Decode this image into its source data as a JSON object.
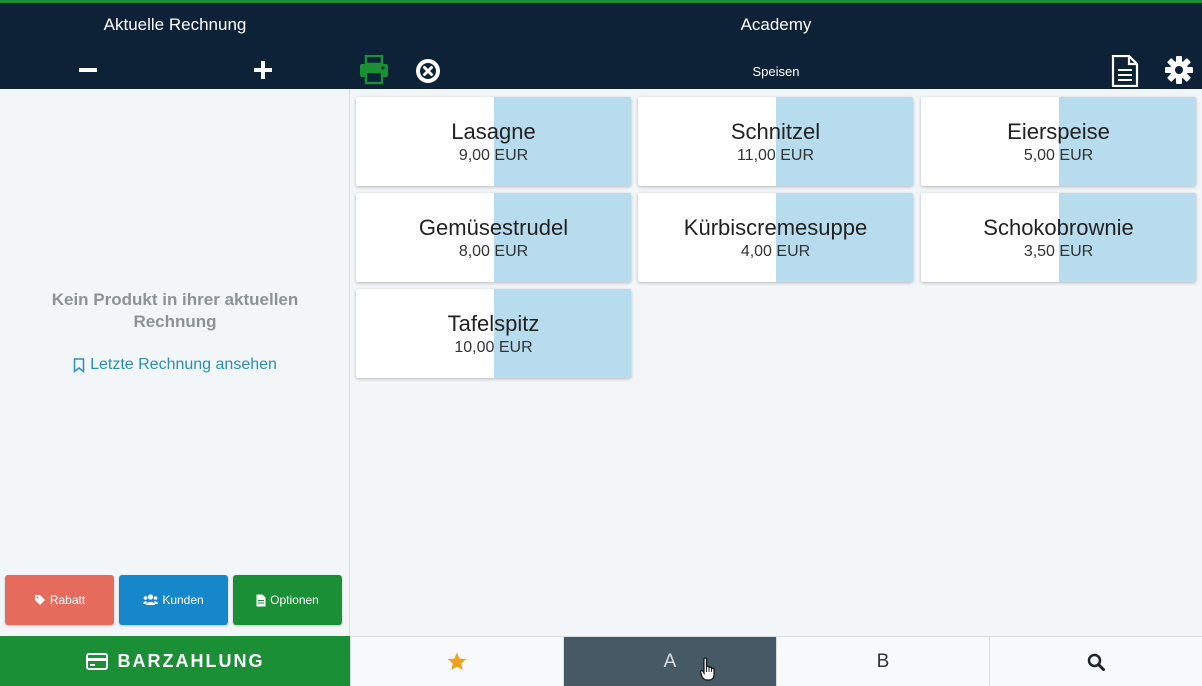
{
  "header": {
    "invoice_title": "Aktuelle Rechnung",
    "venue_title": "Academy",
    "category_label": "Speisen",
    "icons": [
      "minus-icon",
      "plus-icon",
      "print-icon",
      "cancel-icon",
      "document-icon",
      "gear-icon"
    ]
  },
  "left_panel": {
    "empty_message": "Kein Produkt in ihrer aktuellen Rechnung",
    "last_invoice_link": "Letzte Rechnung ansehen",
    "buttons": {
      "rabatt": "Rabatt",
      "kunden": "Kunden",
      "optionen": "Optionen"
    }
  },
  "products": [
    {
      "name": "Lasagne",
      "price": "9,00 EUR"
    },
    {
      "name": "Schnitzel",
      "price": "11,00 EUR"
    },
    {
      "name": "Eierspeise",
      "price": "5,00 EUR"
    },
    {
      "name": "Gemüsestrudel",
      "price": "8,00 EUR"
    },
    {
      "name": "Kürbiscremesuppe",
      "price": "4,00 EUR"
    },
    {
      "name": "Schokobrownie",
      "price": "3,50 EUR"
    },
    {
      "name": "Tafelspitz",
      "price": "10,00 EUR"
    }
  ],
  "footer": {
    "pay_label": "BARZAHLUNG",
    "tabs": {
      "favorites_icon": "star-icon",
      "a": "A",
      "b": "B",
      "search_icon": "search-icon",
      "active": "A"
    }
  },
  "colors": {
    "header_bg": "#0d2137",
    "green": "#1a8f35",
    "red": "#e56b5d",
    "blue": "#1787cc",
    "product_shade": "#b7dcee",
    "active_tab": "#455a64",
    "star": "#f0a21a"
  }
}
